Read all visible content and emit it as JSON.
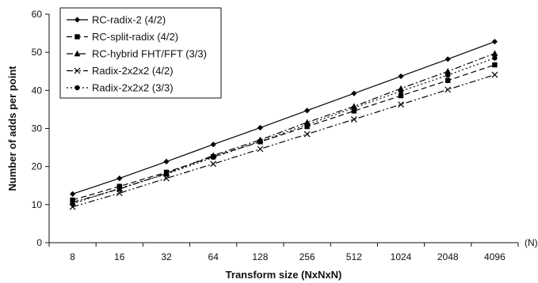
{
  "chart_data": {
    "type": "line",
    "xlabel": "Transform size (NxNxN)",
    "ylabel": "Number of adds per point",
    "x_unit": "(N)",
    "categories": [
      "8",
      "16",
      "32",
      "64",
      "128",
      "256",
      "512",
      "1024",
      "2048",
      "4096"
    ],
    "ylim": [
      0,
      60
    ],
    "yticks": [
      0,
      10,
      20,
      30,
      40,
      50,
      60
    ],
    "grid": false,
    "legend_position": "top-left",
    "series": [
      {
        "name": "RC-radix-2 (4/2)",
        "marker": "diamond",
        "dash": "solid",
        "values": [
          12.8,
          16.9,
          21.3,
          25.8,
          30.2,
          34.7,
          39.2,
          43.7,
          48.2,
          52.8
        ]
      },
      {
        "name": "RC-split-radix (4/2)",
        "marker": "square",
        "dash": "dashed",
        "values": [
          11.2,
          14.8,
          18.5,
          22.6,
          26.5,
          30.5,
          34.6,
          38.6,
          42.6,
          46.7
        ]
      },
      {
        "name": "RC-hybrid FHT/FFT (3/3)",
        "marker": "triangle",
        "dash": "dashdot",
        "values": [
          10.6,
          14.1,
          18.2,
          22.9,
          27.0,
          31.6,
          35.8,
          40.5,
          45.0,
          49.7
        ]
      },
      {
        "name": "Radix-2x2x2 (4/2)",
        "marker": "cross",
        "dash": "dashdotdot",
        "values": [
          9.4,
          13.0,
          16.9,
          20.7,
          24.6,
          28.5,
          32.4,
          36.3,
          40.2,
          44.1
        ]
      },
      {
        "name": "Radix-2x2x2 (3/3)",
        "marker": "circle",
        "dash": "dotted",
        "values": [
          10.2,
          14.3,
          18.0,
          22.4,
          26.6,
          31.0,
          35.4,
          39.8,
          44.0,
          48.5
        ]
      }
    ]
  }
}
